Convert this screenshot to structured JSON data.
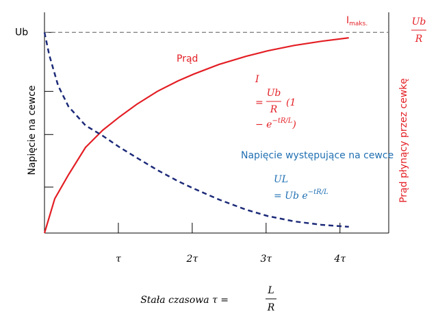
{
  "chart_data": {
    "type": "line",
    "xlim": [
      0,
      4.66
    ],
    "ylim": [
      0,
      1.1
    ],
    "xticks": [
      {
        "value": 1,
        "label": "τ"
      },
      {
        "value": 2,
        "label": "2τ"
      },
      {
        "value": 3,
        "label": "3τ"
      },
      {
        "value": 4,
        "label": "4τ"
      }
    ],
    "yticks": [
      {
        "value": 1,
        "label": "Ub"
      }
    ],
    "minor_yticks": [
      0.229,
      0.491,
      0.706
    ],
    "reference_line": 1,
    "y_label": "Napięcie na cewce",
    "y2_label": "Prąd płynący przez cewkę",
    "y2_unit": {
      "num": "Ub",
      "den": "R"
    },
    "x_label": {
      "text": "Stała czasowa τ =",
      "num": "L",
      "den": "R"
    },
    "current_max_label": {
      "main": "I",
      "sub": "maks."
    },
    "series": [
      {
        "name": "Prąd",
        "color": "#e31e24",
        "dashed": false,
        "x": [
          0,
          0.139,
          0.324,
          0.556,
          0.787,
          1.019,
          1.25,
          1.528,
          1.806,
          2.019,
          2.361,
          2.731,
          3.019,
          3.38,
          3.75,
          4.12
        ],
        "values": [
          0,
          0.171,
          0.29,
          0.427,
          0.512,
          0.58,
          0.642,
          0.706,
          0.758,
          0.792,
          0.84,
          0.881,
          0.908,
          0.935,
          0.956,
          0.973
        ]
      },
      {
        "name": "Napięcie występujące na cewce",
        "color": "#1c2a78",
        "dashed": true,
        "x": [
          0,
          0.065,
          0.185,
          0.324,
          0.556,
          0.787,
          1.019,
          1.25,
          1.528,
          1.806,
          2.019,
          2.361,
          2.731,
          3.019,
          3.38,
          3.75,
          4.12
        ],
        "values": [
          1,
          0.887,
          0.734,
          0.631,
          0.536,
          0.485,
          0.427,
          0.375,
          0.314,
          0.259,
          0.222,
          0.167,
          0.116,
          0.085,
          0.058,
          0.041,
          0.031
        ]
      }
    ],
    "current_formula": {
      "lhs": "I",
      "eq": "=",
      "num": "Ub",
      "den": "R",
      "part1": "(1",
      "part2": "− e",
      "exp": "−tR/L",
      "close": ")"
    },
    "voltage_formula": {
      "lhs": "UL",
      "rhs": "= Ub e",
      "exp": "−tR/L"
    }
  }
}
